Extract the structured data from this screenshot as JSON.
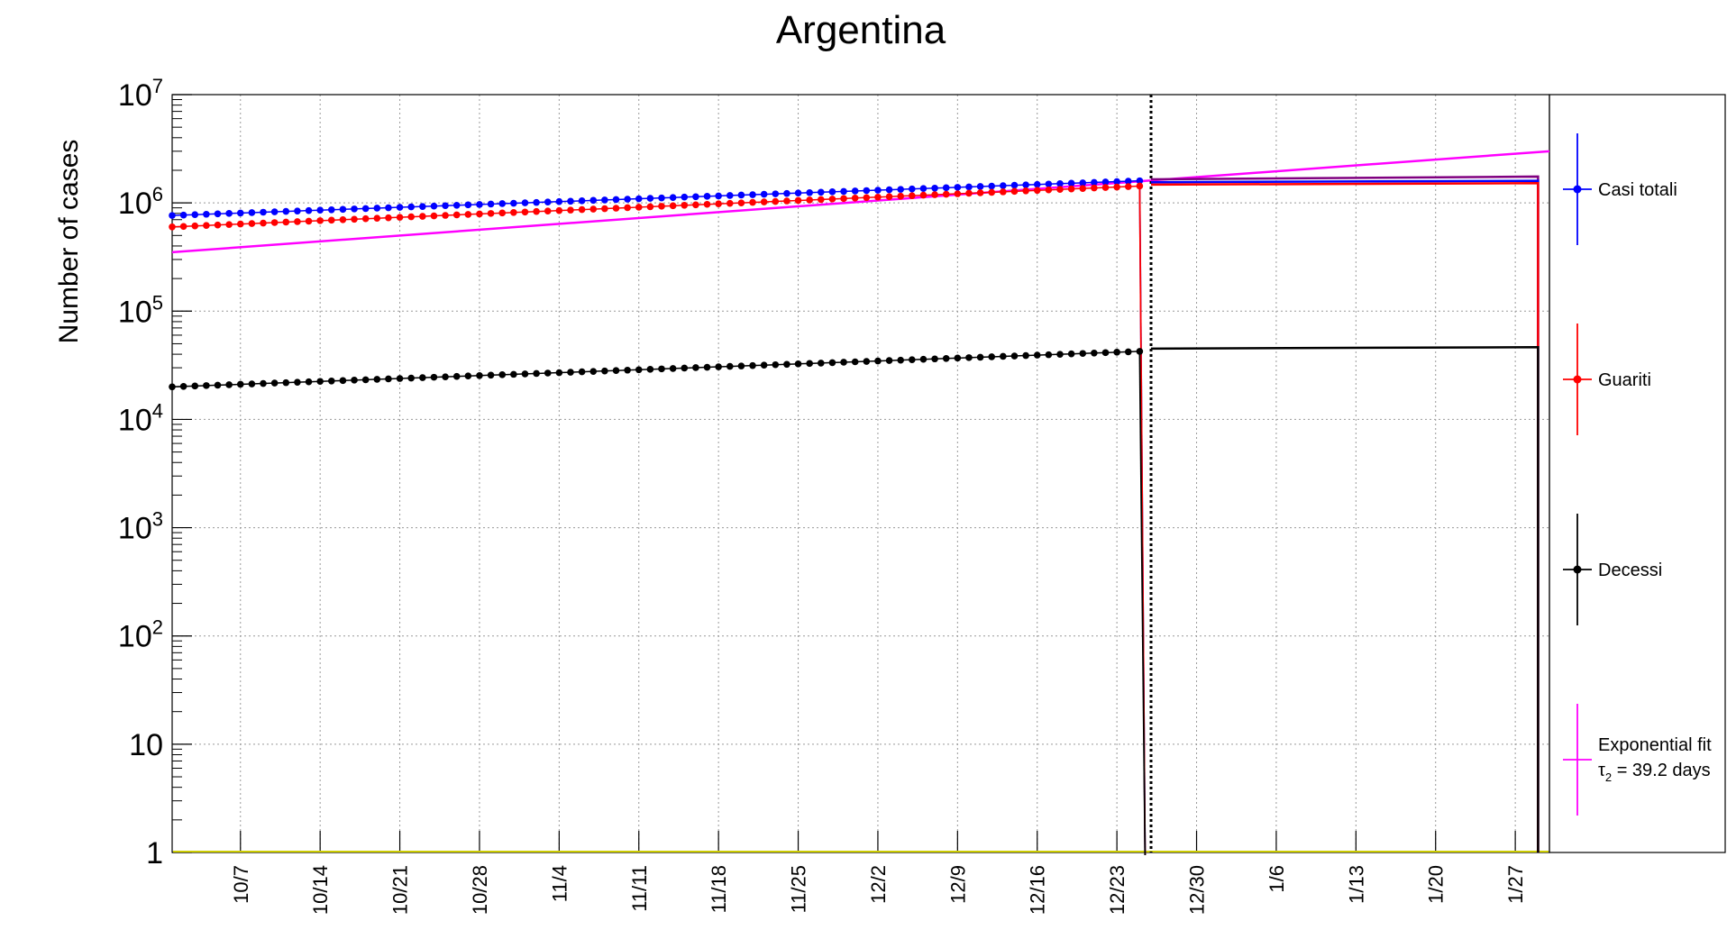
{
  "chart_data": {
    "type": "line",
    "title": "Argentina",
    "ylabel": "Number of cases",
    "xlabel": "",
    "y_scale": "log",
    "ylim": [
      1,
      10000000
    ],
    "y_ticks": [
      {
        "value": 1,
        "base": "1",
        "exp": ""
      },
      {
        "value": 10,
        "base": "10",
        "exp": ""
      },
      {
        "value": 100,
        "base": "10",
        "exp": "2"
      },
      {
        "value": 1000,
        "base": "10",
        "exp": "3"
      },
      {
        "value": 10000,
        "base": "10",
        "exp": "4"
      },
      {
        "value": 100000,
        "base": "10",
        "exp": "5"
      },
      {
        "value": 1000000,
        "base": "10",
        "exp": "6"
      },
      {
        "value": 10000000,
        "base": "10",
        "exp": "7"
      }
    ],
    "x_range": [
      "2020-10-01",
      "2021-01-30"
    ],
    "x_ticks": [
      {
        "date": "2020-10-07",
        "label": "10/7"
      },
      {
        "date": "2020-10-14",
        "label": "10/14"
      },
      {
        "date": "2020-10-21",
        "label": "10/21"
      },
      {
        "date": "2020-10-28",
        "label": "10/28"
      },
      {
        "date": "2020-11-04",
        "label": "11/4"
      },
      {
        "date": "2020-11-11",
        "label": "11/11"
      },
      {
        "date": "2020-11-18",
        "label": "11/18"
      },
      {
        "date": "2020-11-25",
        "label": "11/25"
      },
      {
        "date": "2020-12-02",
        "label": "12/2"
      },
      {
        "date": "2020-12-09",
        "label": "12/9"
      },
      {
        "date": "2020-12-16",
        "label": "12/16"
      },
      {
        "date": "2020-12-23",
        "label": "12/23"
      },
      {
        "date": "2020-12-30",
        "label": "12/30"
      },
      {
        "date": "2021-01-06",
        "label": "1/6"
      },
      {
        "date": "2021-01-13",
        "label": "1/13"
      },
      {
        "date": "2021-01-20",
        "label": "1/20"
      },
      {
        "date": "2021-01-27",
        "label": "1/27"
      }
    ],
    "grid": true,
    "legend_position": "right",
    "vertical_marker_date": "2020-12-26",
    "data_start": "2020-10-01",
    "data_end": "2020-12-25",
    "series": [
      {
        "name": "Casi totali",
        "color": "#0000ff",
        "markers": true,
        "start": 765000,
        "end": 1600000,
        "projection": 1600000
      },
      {
        "name": "Guariti",
        "color": "#ff0000",
        "markers": true,
        "start": 600000,
        "end": 1430000,
        "projection": 1520000
      },
      {
        "name": "Decessi",
        "color": "#000000",
        "markers": true,
        "start": 20000,
        "end": 42500,
        "projection": 46500
      }
    ],
    "fit": {
      "name": "Exponential fit",
      "label_line2": "τ",
      "label_sub": "2",
      "label_rest": " = 39.2 days",
      "color": "#ff00ff",
      "start_date": "2020-10-01",
      "end_date": "2021-01-30",
      "start_value": 350000,
      "end_value": 3000000
    },
    "projection_extra": {
      "color": "#800080",
      "start": 1650000,
      "end": 1750000
    },
    "baseline_color": "#cccc00",
    "projection_range": [
      "2020-12-26",
      "2021-01-29"
    ]
  }
}
